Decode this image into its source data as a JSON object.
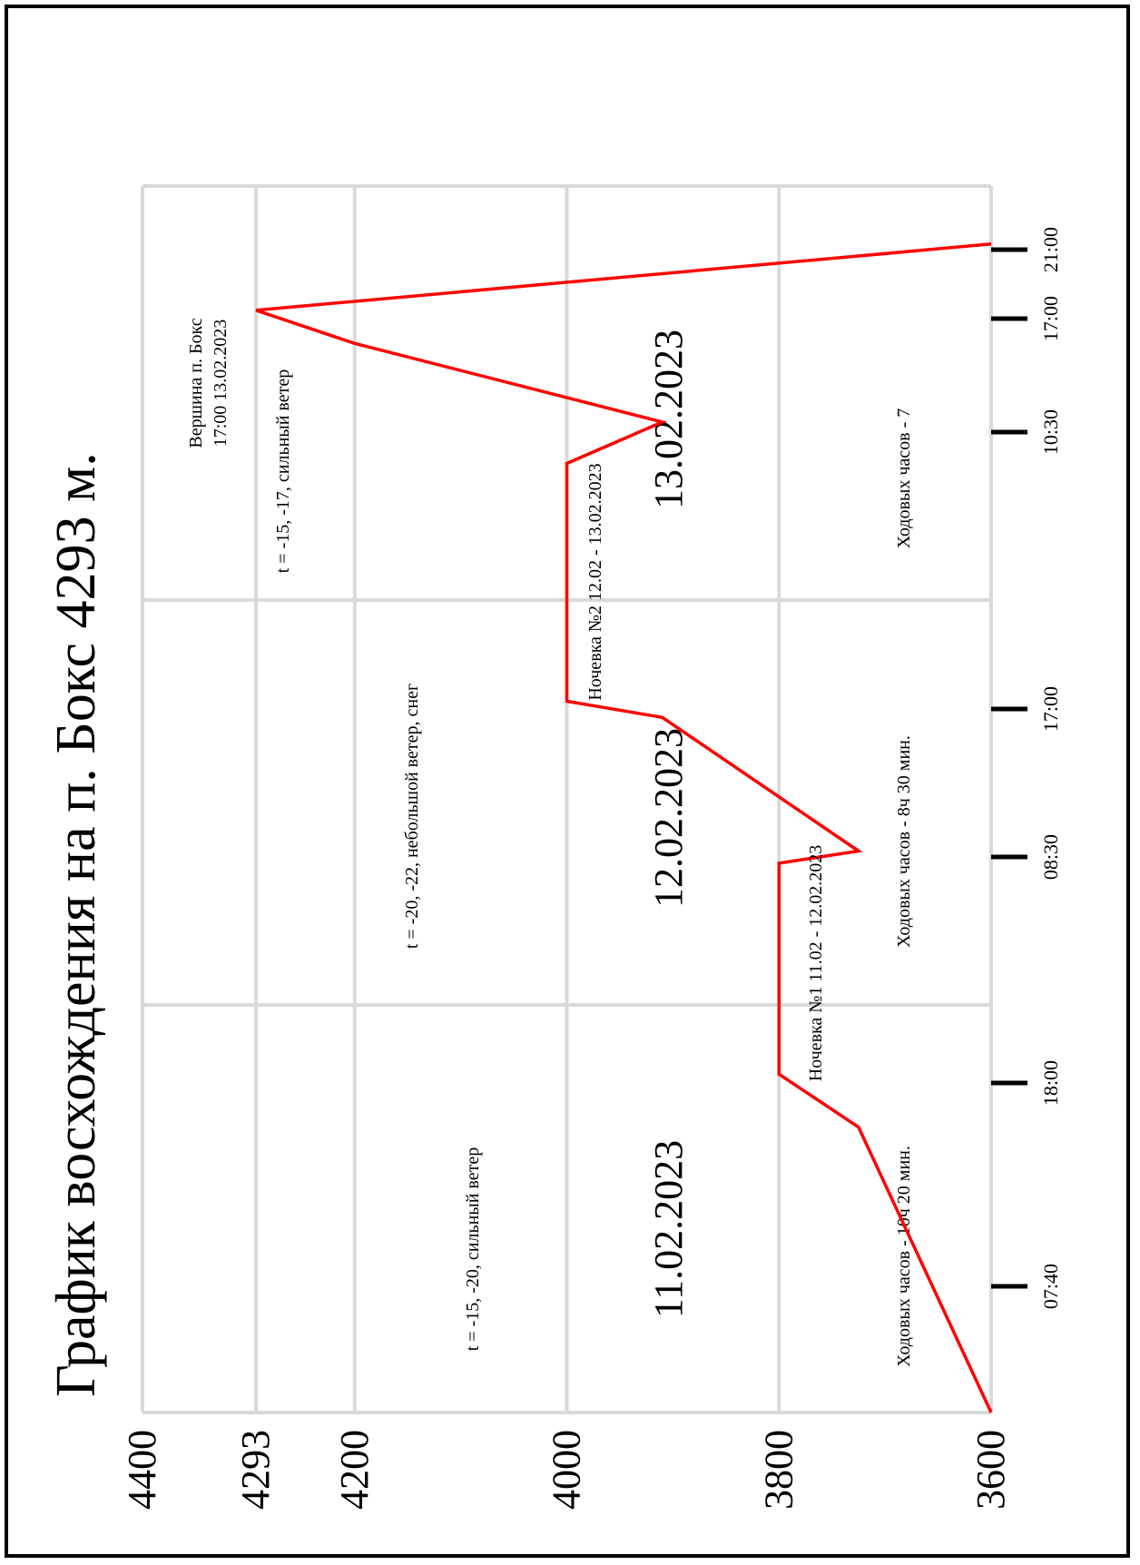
{
  "chart_data": {
    "type": "line",
    "orientation": "rotated-90-ccw",
    "title": "График восхождения на п. Бокс 4293 м.",
    "ylabel": "",
    "xlabel": "",
    "ylim": [
      3600,
      4400
    ],
    "y_ticks": [
      "4400",
      "4293",
      "4200",
      "4000",
      "3800",
      "3600"
    ],
    "grid": true,
    "line_color": "#ff0000",
    "grid_color": "#d9d9d9",
    "days": [
      {
        "date": "11.02.2023",
        "hours_label": "Ходовых часов - 10ч 20 мин.",
        "weather": "t = -15, -20, сильный ветер",
        "time_ticks": [
          "07:40",
          "18:00"
        ]
      },
      {
        "date": "12.02.2023",
        "hours_label": "Ходовых часов -  8ч 30 мин.",
        "weather": "t = -20, -22, небольшой ветер, снег",
        "time_ticks": [
          "08:30",
          "17:00"
        ]
      },
      {
        "date": "13.02.2023",
        "hours_label": "Ходовых часов - 7",
        "weather": "t = -15, -17, сильный ветер",
        "time_ticks": [
          "10:30",
          "17:00",
          "21:00"
        ]
      }
    ],
    "annotations": {
      "camp1": "Ночевка №1 11.02 - 12.02.2023",
      "camp2": "Ночевка №2 12.02 - 13.02.2023",
      "summit_line1": "Вершина п. Бокс",
      "summit_line2": "17:00 13.02.2023"
    },
    "series": [
      {
        "points": [
          {
            "day": 0,
            "t": 0.0,
            "alt": 3600
          },
          {
            "day": 0,
            "t": 0.7,
            "alt": 3725
          },
          {
            "day": 0,
            "t": 0.83,
            "alt": 3800
          },
          {
            "day": 1,
            "t": 0.0,
            "alt": 3800
          },
          {
            "day": 1,
            "t": 0.35,
            "alt": 3800
          },
          {
            "day": 1,
            "t": 0.38,
            "alt": 3725
          },
          {
            "day": 1,
            "t": 0.71,
            "alt": 3910
          },
          {
            "day": 1,
            "t": 0.75,
            "alt": 4000
          },
          {
            "day": 2,
            "t": 0.0,
            "alt": 4000
          },
          {
            "day": 2,
            "t": 0.33,
            "alt": 4000
          },
          {
            "day": 2,
            "t": 0.43,
            "alt": 3910
          },
          {
            "day": 2,
            "t": 0.62,
            "alt": 4200
          },
          {
            "day": 2,
            "t": 0.7,
            "alt": 4293
          },
          {
            "day": 2,
            "t": 0.86,
            "alt": 3600
          }
        ]
      }
    ]
  }
}
